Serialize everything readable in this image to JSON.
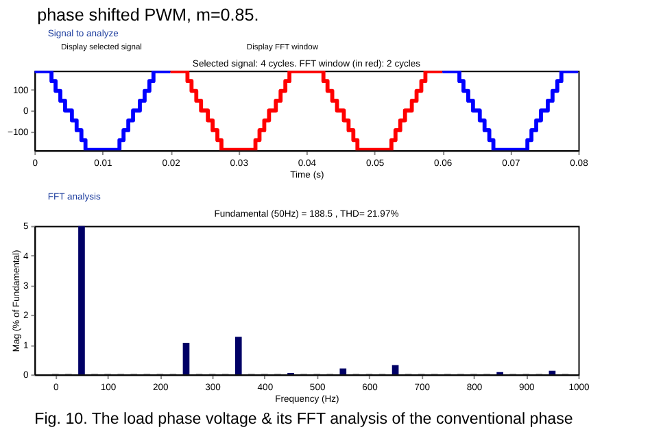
{
  "chart_data": [
    {
      "type": "step",
      "title": "Selected signal: 4 cycles. FFT window (in red): 2 cycles",
      "xlabel": "Time (s)",
      "annotations": [
        "phase shifted PWM, m=0.85.",
        "Signal to analyze",
        "Display selected signal",
        "Display FFT window"
      ],
      "series": [
        {
          "color": "#0000ff",
          "x": [
            0,
            0.0025,
            0.0031,
            0.0038,
            0.0045,
            0.0055,
            0.0062,
            0.0069,
            0.0075,
            0.0125,
            0.0131,
            0.0138,
            0.0145,
            0.0155,
            0.0162,
            0.0169,
            0.0175,
            0.02
          ],
          "values": [
            188,
            141,
            94,
            47,
            0,
            -47,
            -94,
            -141,
            -188,
            -141,
            -94,
            -47,
            0,
            47,
            94,
            141,
            188,
            188
          ]
        },
        {
          "color": "#ff0000",
          "x": [
            0.02,
            0.0225,
            0.0231,
            0.0238,
            0.0245,
            0.0255,
            0.0262,
            0.0269,
            0.0275,
            0.0325,
            0.0331,
            0.0338,
            0.0345,
            0.0355,
            0.0362,
            0.0369,
            0.0375,
            0.0425,
            0.0431,
            0.0438,
            0.0445,
            0.0455,
            0.0462,
            0.0469,
            0.0475,
            0.0525,
            0.0531,
            0.0538,
            0.0545,
            0.0555,
            0.0562,
            0.0569,
            0.0575,
            0.06
          ],
          "values": [
            188,
            141,
            94,
            47,
            0,
            -47,
            -94,
            -141,
            -188,
            -141,
            -94,
            -47,
            0,
            47,
            94,
            141,
            188,
            141,
            94,
            47,
            0,
            -47,
            -94,
            -141,
            -188,
            -141,
            -94,
            -47,
            0,
            47,
            94,
            141,
            188,
            188
          ]
        },
        {
          "color": "#0000ff",
          "x": [
            0.06,
            0.0625,
            0.0631,
            0.0638,
            0.0645,
            0.0655,
            0.0662,
            0.0669,
            0.0675,
            0.0725,
            0.0731,
            0.0738,
            0.0745,
            0.0755,
            0.0762,
            0.0769,
            0.0775,
            0.08
          ],
          "values": [
            188,
            141,
            94,
            47,
            0,
            -47,
            -94,
            -141,
            -188,
            -141,
            -94,
            -47,
            0,
            47,
            94,
            141,
            188,
            188
          ]
        }
      ],
      "xlim": [
        0,
        0.08
      ],
      "xticks": [
        0,
        0.01,
        0.02,
        0.03,
        0.04,
        0.05,
        0.06,
        0.07,
        0.08
      ],
      "ylim": [
        -190,
        190
      ],
      "yticks": [
        -100,
        0,
        100
      ],
      "grid": false,
      "legend": false
    },
    {
      "type": "bar",
      "title": "Fundamental (50Hz) = 188.5 , THD= 21.97%",
      "xlabel": "Frequency (Hz)",
      "ylabel": "Mag (% of Fundamental)",
      "annotations": [
        "FFT analysis",
        "Fig. 10.  The load phase voltage & its FFT analysis of the conventional phase"
      ],
      "x": [
        0,
        25,
        50,
        75,
        100,
        125,
        150,
        175,
        200,
        225,
        250,
        275,
        300,
        325,
        350,
        375,
        400,
        425,
        450,
        475,
        500,
        525,
        550,
        575,
        600,
        625,
        650,
        675,
        700,
        725,
        750,
        775,
        800,
        825,
        850,
        875,
        900,
        925,
        950,
        975
      ],
      "values": [
        0.03,
        0.03,
        5,
        0.03,
        0.03,
        0.03,
        0.03,
        0.03,
        0.03,
        0.03,
        1.07,
        0.03,
        0.03,
        0.03,
        1.27,
        0.03,
        0.03,
        0.03,
        0.05,
        0.03,
        0.03,
        0.03,
        0.2,
        0.03,
        0.03,
        0.03,
        0.32,
        0.03,
        0.03,
        0.03,
        0.03,
        0.03,
        0.03,
        0.03,
        0.08,
        0.03,
        0.03,
        0.03,
        0.13,
        0.03
      ],
      "colors": [
        "#999999",
        "#999999",
        "#000066",
        "#999999",
        "#999999",
        "#999999",
        "#999999",
        "#999999",
        "#999999",
        "#999999",
        "#000066",
        "#999999",
        "#999999",
        "#999999",
        "#000066",
        "#999999",
        "#999999",
        "#999999",
        "#000066",
        "#999999",
        "#999999",
        "#999999",
        "#000066",
        "#999999",
        "#999999",
        "#999999",
        "#000066",
        "#999999",
        "#999999",
        "#999999",
        "#999999",
        "#999999",
        "#999999",
        "#999999",
        "#000066",
        "#999999",
        "#999999",
        "#999999",
        "#000066",
        "#999999"
      ],
      "xlim": [
        -40,
        1000
      ],
      "xticks": [
        0,
        100,
        200,
        300,
        400,
        500,
        600,
        700,
        800,
        900,
        1000
      ],
      "ylim": [
        0,
        5
      ],
      "yticks": [
        0,
        1,
        2,
        3,
        4,
        5
      ],
      "grid": false,
      "legend": false
    }
  ]
}
